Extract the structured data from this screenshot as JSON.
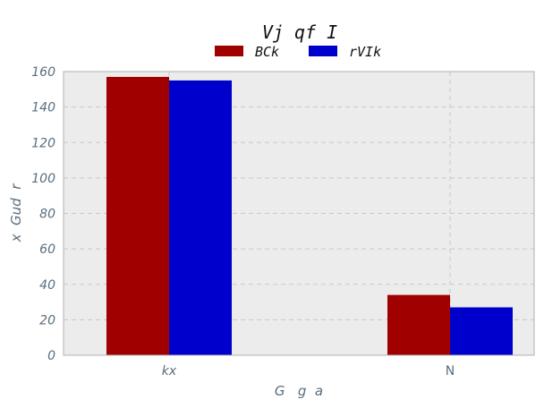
{
  "chart_data": {
    "type": "bar",
    "title": "Vj qf I",
    "xlabel": "G   g  a",
    "ylabel": "x  Gud  r",
    "categories": [
      "kx",
      "N"
    ],
    "category_italic": [
      true,
      false
    ],
    "series": [
      {
        "name": "BCk",
        "color": "#a00000",
        "values": [
          157,
          34
        ]
      },
      {
        "name": "rVIk",
        "color": "#0000cc",
        "values": [
          155,
          27
        ]
      }
    ],
    "ylim": [
      0,
      160
    ],
    "yticks": [
      "0",
      "20",
      "40",
      "60",
      "80",
      "100",
      "120",
      "140",
      "160"
    ],
    "grid": true,
    "legend_position": "top-center",
    "colors": {
      "plot_background": "#ececec",
      "grid": "#c8c8c8",
      "frame": "#b0b0b0",
      "text": "#5a6e7e"
    }
  }
}
